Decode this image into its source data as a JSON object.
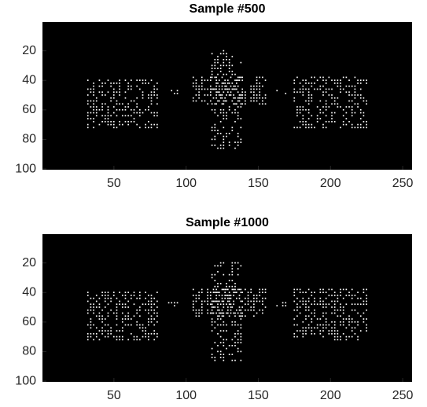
{
  "chart_data": [
    {
      "type": "image",
      "title": "Sample #500",
      "xlim": [
        0.5,
        256.5
      ],
      "ylim": [
        0.5,
        100.5
      ],
      "xticks": [
        50,
        100,
        150,
        200,
        250
      ],
      "yticks": [
        20,
        40,
        60,
        80,
        100
      ],
      "y_reversed": true,
      "background": "#000000",
      "color": "#ffffff"
    },
    {
      "type": "image",
      "title": "Sample #1000",
      "xlim": [
        0.5,
        256.5
      ],
      "ylim": [
        0.5,
        100.5
      ],
      "xticks": [
        50,
        100,
        150,
        200,
        250
      ],
      "yticks": [
        20,
        40,
        60,
        80,
        100
      ],
      "y_reversed": true,
      "background": "#000000",
      "color": "#ffffff"
    }
  ]
}
